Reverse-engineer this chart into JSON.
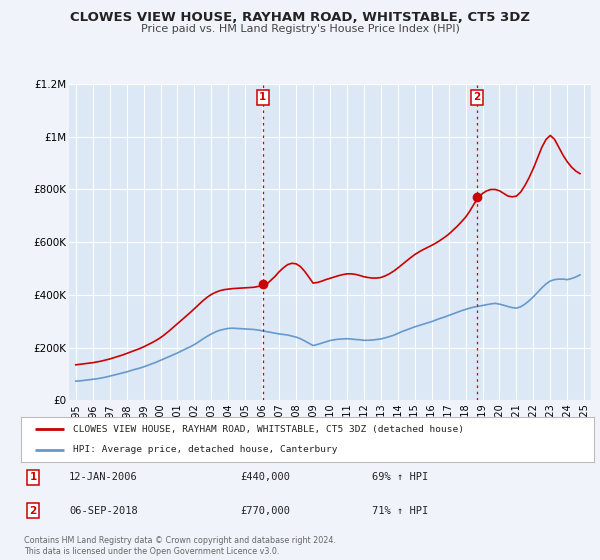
{
  "title": "CLOWES VIEW HOUSE, RAYHAM ROAD, WHITSTABLE, CT5 3DZ",
  "subtitle": "Price paid vs. HM Land Registry's House Price Index (HPI)",
  "background_color": "#f0f4fa",
  "plot_bg_color": "#dce8f5",
  "grid_color": "#ffffff",
  "ylim": [
    0,
    1200000
  ],
  "yticks": [
    0,
    200000,
    400000,
    600000,
    800000,
    1000000,
    1200000
  ],
  "ytick_labels": [
    "£0",
    "£200K",
    "£400K",
    "£600K",
    "£800K",
    "£1M",
    "£1.2M"
  ],
  "xlim_start": 1994.6,
  "xlim_end": 2025.4,
  "xtick_years": [
    1995,
    1996,
    1997,
    1998,
    1999,
    2000,
    2001,
    2002,
    2003,
    2004,
    2005,
    2006,
    2007,
    2008,
    2009,
    2010,
    2011,
    2012,
    2013,
    2014,
    2015,
    2016,
    2017,
    2018,
    2019,
    2020,
    2021,
    2022,
    2023,
    2024,
    2025
  ],
  "line1_color": "#cc0000",
  "line2_color": "#6699cc",
  "marker_color": "#cc0000",
  "vline_color": "#cc0000",
  "vline1_x": 2006.04,
  "vline2_x": 2018.68,
  "marker1_x": 2006.04,
  "marker1_y": 440000,
  "marker2_x": 2018.68,
  "marker2_y": 770000,
  "legend1_text": "CLOWES VIEW HOUSE, RAYHAM ROAD, WHITSTABLE, CT5 3DZ (detached house)",
  "legend2_text": "HPI: Average price, detached house, Canterbury",
  "annotation1_date": "12-JAN-2006",
  "annotation1_price": "£440,000",
  "annotation1_hpi": "69% ↑ HPI",
  "annotation2_date": "06-SEP-2018",
  "annotation2_price": "£770,000",
  "annotation2_hpi": "71% ↑ HPI",
  "footer_text": "Contains HM Land Registry data © Crown copyright and database right 2024.\nThis data is licensed under the Open Government Licence v3.0.",
  "hpi_line": {
    "x": [
      1995.0,
      1995.25,
      1995.5,
      1995.75,
      1996.0,
      1996.25,
      1996.5,
      1996.75,
      1997.0,
      1997.25,
      1997.5,
      1997.75,
      1998.0,
      1998.25,
      1998.5,
      1998.75,
      1999.0,
      1999.25,
      1999.5,
      1999.75,
      2000.0,
      2000.25,
      2000.5,
      2000.75,
      2001.0,
      2001.25,
      2001.5,
      2001.75,
      2002.0,
      2002.25,
      2002.5,
      2002.75,
      2003.0,
      2003.25,
      2003.5,
      2003.75,
      2004.0,
      2004.25,
      2004.5,
      2004.75,
      2005.0,
      2005.25,
      2005.5,
      2005.75,
      2006.0,
      2006.25,
      2006.5,
      2006.75,
      2007.0,
      2007.25,
      2007.5,
      2007.75,
      2008.0,
      2008.25,
      2008.5,
      2008.75,
      2009.0,
      2009.25,
      2009.5,
      2009.75,
      2010.0,
      2010.25,
      2010.5,
      2010.75,
      2011.0,
      2011.25,
      2011.5,
      2011.75,
      2012.0,
      2012.25,
      2012.5,
      2012.75,
      2013.0,
      2013.25,
      2013.5,
      2013.75,
      2014.0,
      2014.25,
      2014.5,
      2014.75,
      2015.0,
      2015.25,
      2015.5,
      2015.75,
      2016.0,
      2016.25,
      2016.5,
      2016.75,
      2017.0,
      2017.25,
      2017.5,
      2017.75,
      2018.0,
      2018.25,
      2018.5,
      2018.75,
      2019.0,
      2019.25,
      2019.5,
      2019.75,
      2020.0,
      2020.25,
      2020.5,
      2020.75,
      2021.0,
      2021.25,
      2021.5,
      2021.75,
      2022.0,
      2022.25,
      2022.5,
      2022.75,
      2023.0,
      2023.25,
      2023.5,
      2023.75,
      2024.0,
      2024.25,
      2024.5,
      2024.75
    ],
    "y": [
      73000,
      74000,
      76000,
      78000,
      80000,
      82000,
      85000,
      88000,
      92000,
      96000,
      100000,
      104000,
      108000,
      113000,
      118000,
      122000,
      127000,
      133000,
      139000,
      145000,
      152000,
      159000,
      166000,
      173000,
      180000,
      188000,
      196000,
      203000,
      212000,
      222000,
      233000,
      243000,
      252000,
      260000,
      266000,
      270000,
      273000,
      274000,
      273000,
      272000,
      271000,
      270000,
      269000,
      267000,
      264000,
      261000,
      258000,
      255000,
      252000,
      250000,
      248000,
      244000,
      240000,
      234000,
      226000,
      217000,
      208000,
      212000,
      217000,
      222000,
      227000,
      230000,
      232000,
      233000,
      234000,
      233000,
      231000,
      230000,
      228000,
      228000,
      229000,
      231000,
      233000,
      237000,
      242000,
      247000,
      254000,
      261000,
      267000,
      273000,
      279000,
      284000,
      289000,
      294000,
      299000,
      305000,
      311000,
      316000,
      322000,
      328000,
      334000,
      340000,
      345000,
      350000,
      354000,
      357000,
      360000,
      363000,
      366000,
      368000,
      365000,
      361000,
      356000,
      352000,
      350000,
      355000,
      365000,
      378000,
      393000,
      410000,
      427000,
      442000,
      453000,
      458000,
      460000,
      460000,
      458000,
      462000,
      468000,
      476000
    ]
  },
  "price_line": {
    "x": [
      1995.0,
      1995.25,
      1995.5,
      1995.75,
      1996.0,
      1996.25,
      1996.5,
      1996.75,
      1997.0,
      1997.25,
      1997.5,
      1997.75,
      1998.0,
      1998.25,
      1998.5,
      1998.75,
      1999.0,
      1999.25,
      1999.5,
      1999.75,
      2000.0,
      2000.25,
      2000.5,
      2000.75,
      2001.0,
      2001.25,
      2001.5,
      2001.75,
      2002.0,
      2002.25,
      2002.5,
      2002.75,
      2003.0,
      2003.25,
      2003.5,
      2003.75,
      2004.0,
      2004.25,
      2004.5,
      2004.75,
      2005.0,
      2005.25,
      2005.5,
      2005.75,
      2006.0,
      2006.25,
      2006.5,
      2006.75,
      2007.0,
      2007.25,
      2007.5,
      2007.75,
      2008.0,
      2008.25,
      2008.5,
      2008.75,
      2009.0,
      2009.25,
      2009.5,
      2009.75,
      2010.0,
      2010.25,
      2010.5,
      2010.75,
      2011.0,
      2011.25,
      2011.5,
      2011.75,
      2012.0,
      2012.25,
      2012.5,
      2012.75,
      2013.0,
      2013.25,
      2013.5,
      2013.75,
      2014.0,
      2014.25,
      2014.5,
      2014.75,
      2015.0,
      2015.25,
      2015.5,
      2015.75,
      2016.0,
      2016.25,
      2016.5,
      2016.75,
      2017.0,
      2017.25,
      2017.5,
      2017.75,
      2018.0,
      2018.25,
      2018.5,
      2018.75,
      2019.0,
      2019.25,
      2019.5,
      2019.75,
      2020.0,
      2020.25,
      2020.5,
      2020.75,
      2021.0,
      2021.25,
      2021.5,
      2021.75,
      2022.0,
      2022.25,
      2022.5,
      2022.75,
      2023.0,
      2023.25,
      2023.5,
      2023.75,
      2024.0,
      2024.25,
      2024.5,
      2024.75
    ],
    "y": [
      135000,
      137000,
      139000,
      141000,
      143000,
      146000,
      149000,
      153000,
      157000,
      162000,
      167000,
      172000,
      178000,
      184000,
      190000,
      196000,
      203000,
      211000,
      219000,
      228000,
      238000,
      250000,
      263000,
      277000,
      291000,
      305000,
      319000,
      333000,
      348000,
      363000,
      378000,
      391000,
      402000,
      410000,
      416000,
      420000,
      422000,
      424000,
      425000,
      426000,
      427000,
      428000,
      429000,
      432000,
      436000,
      440000,
      455000,
      470000,
      488000,
      503000,
      515000,
      520000,
      518000,
      508000,
      490000,
      468000,
      445000,
      447000,
      452000,
      458000,
      463000,
      468000,
      473000,
      477000,
      480000,
      480000,
      478000,
      474000,
      469000,
      466000,
      464000,
      464000,
      466000,
      472000,
      480000,
      490000,
      502000,
      515000,
      528000,
      541000,
      553000,
      563000,
      572000,
      580000,
      588000,
      597000,
      607000,
      618000,
      630000,
      645000,
      660000,
      677000,
      695000,
      718000,
      745000,
      768000,
      785000,
      795000,
      800000,
      800000,
      795000,
      785000,
      775000,
      772000,
      775000,
      790000,
      815000,
      845000,
      880000,
      920000,
      960000,
      990000,
      1005000,
      990000,
      960000,
      930000,
      905000,
      885000,
      870000,
      860000
    ]
  }
}
